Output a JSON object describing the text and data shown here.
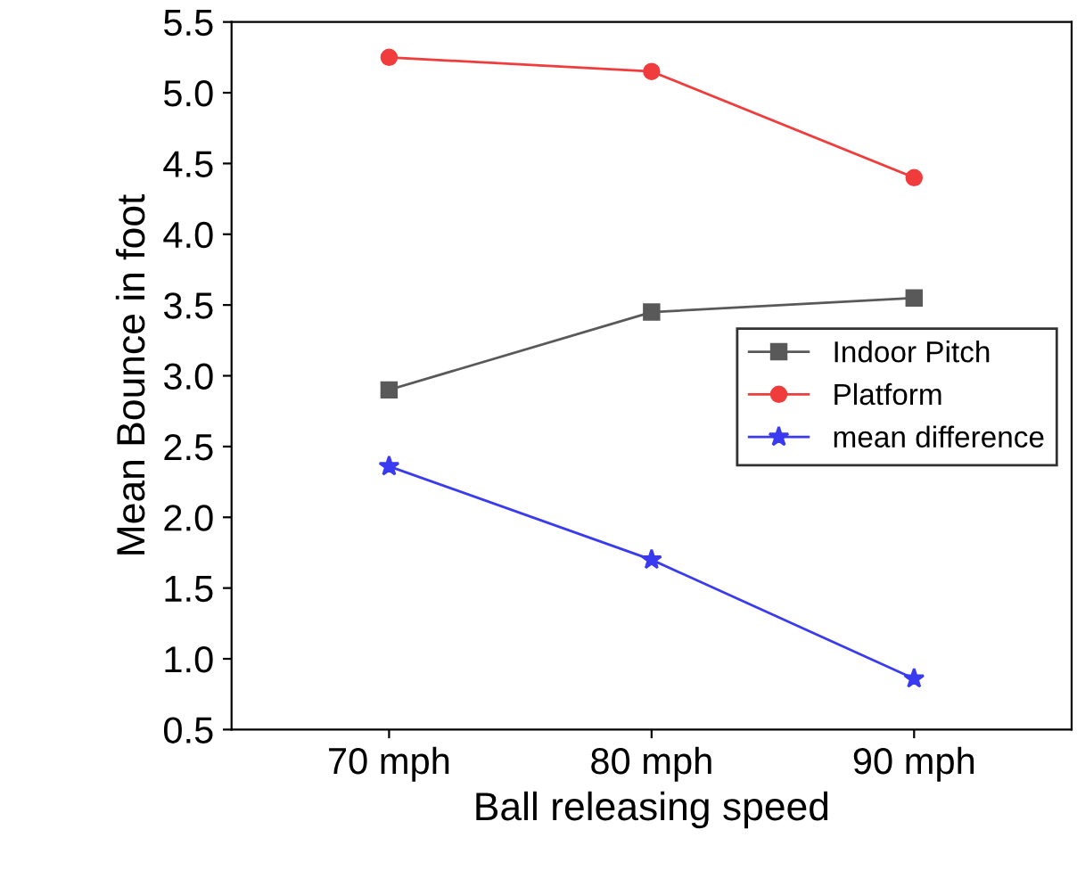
{
  "chart_data": {
    "type": "line",
    "xlabel": "Ball releasing speed",
    "ylabel": "Mean Bounce in foot",
    "categories": [
      "70 mph",
      "80 mph",
      "90 mph"
    ],
    "series": [
      {
        "name": "Indoor Pitch",
        "color": "#595959",
        "marker": "square",
        "values": [
          2.9,
          3.45,
          3.55
        ]
      },
      {
        "name": "Platform",
        "color": "#f03c3c",
        "marker": "circle",
        "values": [
          5.25,
          5.15,
          4.4
        ]
      },
      {
        "name": "mean difference",
        "color": "#3a3af0",
        "marker": "star",
        "values": [
          2.36,
          1.7,
          0.86
        ]
      }
    ],
    "ylim": [
      0.5,
      5.5
    ],
    "yticks": [
      {
        "value": 0.5,
        "label": "0.5"
      },
      {
        "value": 1.0,
        "label": "1.0"
      },
      {
        "value": 1.5,
        "label": "1.5"
      },
      {
        "value": 2.0,
        "label": "2.0"
      },
      {
        "value": 2.5,
        "label": "2.5"
      },
      {
        "value": 3.0,
        "label": "3.0"
      },
      {
        "value": 3.5,
        "label": "3.5"
      },
      {
        "value": 4.0,
        "label": "4.0"
      },
      {
        "value": 4.5,
        "label": "4.5"
      },
      {
        "value": 5.0,
        "label": "5.0"
      },
      {
        "value": 5.5,
        "label": "5.5"
      }
    ],
    "grid": false,
    "legend": "right",
    "line_style": "solid"
  }
}
